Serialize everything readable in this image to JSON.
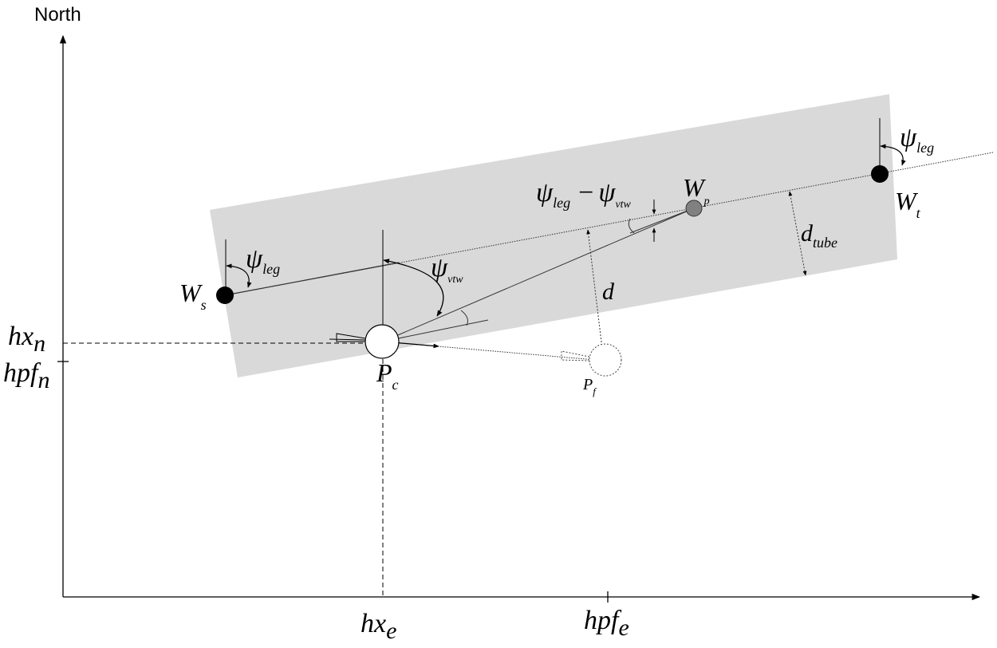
{
  "axes": {
    "north_label": "North"
  },
  "labels": {
    "hx_n": {
      "main": "hx",
      "sub": "n"
    },
    "hpf_n": {
      "main": "hpf",
      "sub": "n"
    },
    "hx_e": {
      "main": "hx",
      "sub": "e"
    },
    "hpf_e": {
      "main": "hpf",
      "sub": "e"
    },
    "W_s": {
      "main": "W",
      "sub": "s"
    },
    "W_t": {
      "main": "W",
      "sub": "t"
    },
    "W_p": {
      "main": "W",
      "sub": "p"
    },
    "P_c": {
      "main": "P",
      "sub": "c"
    },
    "P_f": {
      "main": "P",
      "sub": "f"
    },
    "d": {
      "main": "d"
    },
    "d_tube": {
      "main": "d",
      "sub": "tube"
    },
    "psi_leg_left": {
      "main": "ψ",
      "sub": "leg"
    },
    "psi_leg_right": {
      "main": "ψ",
      "sub": "leg"
    },
    "psi_vtw": {
      "main": "ψ",
      "sub": "vtw"
    },
    "psi_diff": {
      "a_main": "ψ",
      "a_sub": "leg",
      "op": "−",
      "b_main": "ψ",
      "b_sub": "vtw"
    }
  },
  "colors": {
    "tube_fill": "#d9d9d9",
    "waypoint_fill": "#000000",
    "wp_fill": "#808080",
    "line": "#333333"
  }
}
